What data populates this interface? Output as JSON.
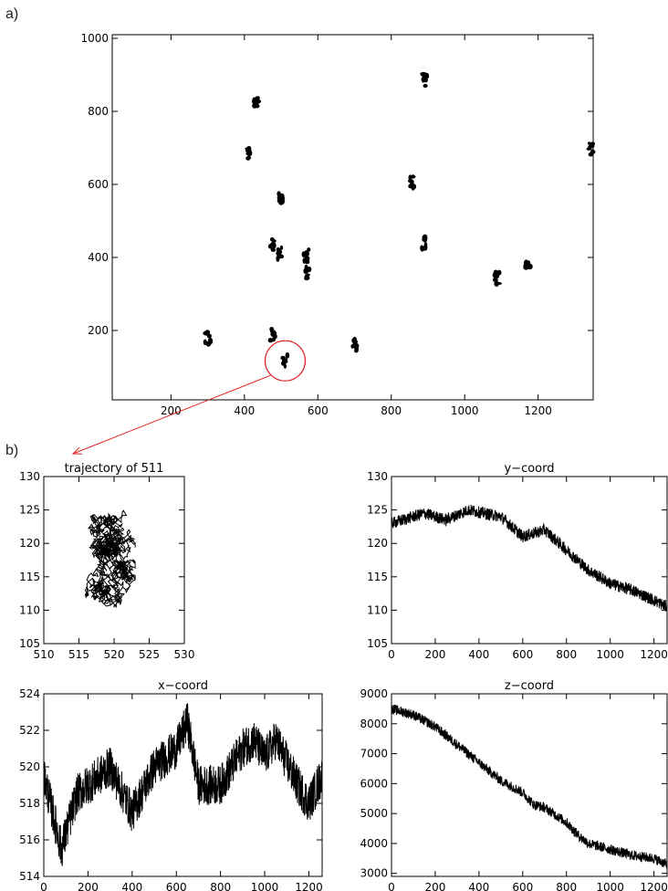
{
  "labels": {
    "panel_a": "a)",
    "panel_b": "b)"
  },
  "chart_data": [
    {
      "id": "scatter",
      "type": "scatter",
      "title": "",
      "xlabel": "",
      "ylabel": "",
      "xlim": [
        40,
        1350
      ],
      "ylim": [
        10,
        1010
      ],
      "xticks": [
        200,
        400,
        600,
        800,
        1000,
        1200
      ],
      "yticks": [
        200,
        400,
        600,
        800,
        1000
      ],
      "xtick_labels": [
        "200",
        "400",
        "600",
        "800",
        "1000",
        "1200"
      ],
      "ytick_labels": [
        "200",
        "400",
        "600",
        "800",
        "1000"
      ],
      "points": [
        {
          "x": 432,
          "y": 826
        },
        {
          "x": 411,
          "y": 685
        },
        {
          "x": 500,
          "y": 565
        },
        {
          "x": 478,
          "y": 432
        },
        {
          "x": 497,
          "y": 410
        },
        {
          "x": 568,
          "y": 405
        },
        {
          "x": 573,
          "y": 357
        },
        {
          "x": 477,
          "y": 190
        },
        {
          "x": 300,
          "y": 180
        },
        {
          "x": 511,
          "y": 117
        },
        {
          "x": 700,
          "y": 158
        },
        {
          "x": 890,
          "y": 885
        },
        {
          "x": 858,
          "y": 605
        },
        {
          "x": 888,
          "y": 438
        },
        {
          "x": 1087,
          "y": 345
        },
        {
          "x": 1172,
          "y": 380
        },
        {
          "x": 1343,
          "y": 698
        }
      ],
      "highlight": {
        "x": 511,
        "y": 117,
        "color": "#e02020"
      },
      "grid": false
    },
    {
      "id": "trajectory",
      "type": "line",
      "title": "trajectory of 511",
      "xlabel": "",
      "ylabel": "",
      "xlim": [
        510,
        530
      ],
      "ylim": [
        105,
        130
      ],
      "xticks": [
        510,
        515,
        520,
        525,
        530
      ],
      "yticks": [
        105,
        110,
        115,
        120,
        125,
        130
      ],
      "xtick_labels": [
        "510",
        "515",
        "520",
        "525",
        "530"
      ],
      "ytick_labels": [
        "105",
        "110",
        "115",
        "120",
        "125",
        "130"
      ],
      "grid": false
    },
    {
      "id": "ycoord",
      "type": "line",
      "title": "y−coord",
      "xlabel": "",
      "ylabel": "",
      "xlim": [
        0,
        1260
      ],
      "ylim": [
        105,
        130
      ],
      "xticks": [
        0,
        200,
        400,
        600,
        800,
        1000,
        1200
      ],
      "yticks": [
        105,
        110,
        115,
        120,
        125,
        130
      ],
      "xtick_labels": [
        "0",
        "200",
        "400",
        "600",
        "800",
        "1000",
        "1200"
      ],
      "ytick_labels": [
        "105",
        "110",
        "115",
        "120",
        "125",
        "130"
      ],
      "trend": [
        [
          0,
          123
        ],
        [
          150,
          124.5
        ],
        [
          250,
          123.5
        ],
        [
          350,
          125
        ],
        [
          500,
          124
        ],
        [
          600,
          121
        ],
        [
          700,
          122
        ],
        [
          800,
          119
        ],
        [
          900,
          116
        ],
        [
          1000,
          114
        ],
        [
          1100,
          113
        ],
        [
          1200,
          111.5
        ],
        [
          1260,
          110.5
        ]
      ],
      "grid": false
    },
    {
      "id": "xcoord",
      "type": "line",
      "title": "x−coord",
      "xlabel": "",
      "ylabel": "",
      "xlim": [
        0,
        1260
      ],
      "ylim": [
        514,
        524
      ],
      "xticks": [
        0,
        200,
        400,
        600,
        800,
        1000,
        1200
      ],
      "yticks": [
        514,
        516,
        518,
        520,
        522,
        524
      ],
      "xtick_labels": [
        "0",
        "200",
        "400",
        "600",
        "800",
        "1000",
        "1200"
      ],
      "ytick_labels": [
        "514",
        "516",
        "518",
        "520",
        "522",
        "524"
      ],
      "trend": [
        [
          0,
          519.5
        ],
        [
          50,
          517
        ],
        [
          80,
          515.5
        ],
        [
          150,
          518.5
        ],
        [
          250,
          519.5
        ],
        [
          300,
          520
        ],
        [
          400,
          517.5
        ],
        [
          500,
          520
        ],
        [
          600,
          521
        ],
        [
          650,
          522.5
        ],
        [
          700,
          519
        ],
        [
          800,
          519
        ],
        [
          900,
          521
        ],
        [
          950,
          521.5
        ],
        [
          1000,
          520.5
        ],
        [
          1050,
          521.5
        ],
        [
          1150,
          519
        ],
        [
          1200,
          518
        ],
        [
          1260,
          519.5
        ]
      ],
      "grid": false
    },
    {
      "id": "zcoord",
      "type": "line",
      "title": "z−coord",
      "xlabel": "",
      "ylabel": "",
      "xlim": [
        0,
        1260
      ],
      "ylim": [
        2900,
        9000
      ],
      "xticks": [
        0,
        200,
        400,
        600,
        800,
        1000,
        1200
      ],
      "yticks": [
        3000,
        4000,
        5000,
        6000,
        7000,
        8000,
        9000
      ],
      "xtick_labels": [
        "0",
        "200",
        "400",
        "600",
        "800",
        "1000",
        "1200"
      ],
      "ytick_labels": [
        "3000",
        "4000",
        "5000",
        "6000",
        "7000",
        "8000",
        "9000"
      ],
      "trend": [
        [
          0,
          8500
        ],
        [
          100,
          8300
        ],
        [
          200,
          7900
        ],
        [
          300,
          7300
        ],
        [
          400,
          6700
        ],
        [
          500,
          6100
        ],
        [
          600,
          5700
        ],
        [
          650,
          5300
        ],
        [
          700,
          5200
        ],
        [
          800,
          4700
        ],
        [
          850,
          4300
        ],
        [
          900,
          4000
        ],
        [
          1000,
          3800
        ],
        [
          1100,
          3600
        ],
        [
          1200,
          3500
        ],
        [
          1260,
          3300
        ]
      ],
      "grid": false
    }
  ]
}
